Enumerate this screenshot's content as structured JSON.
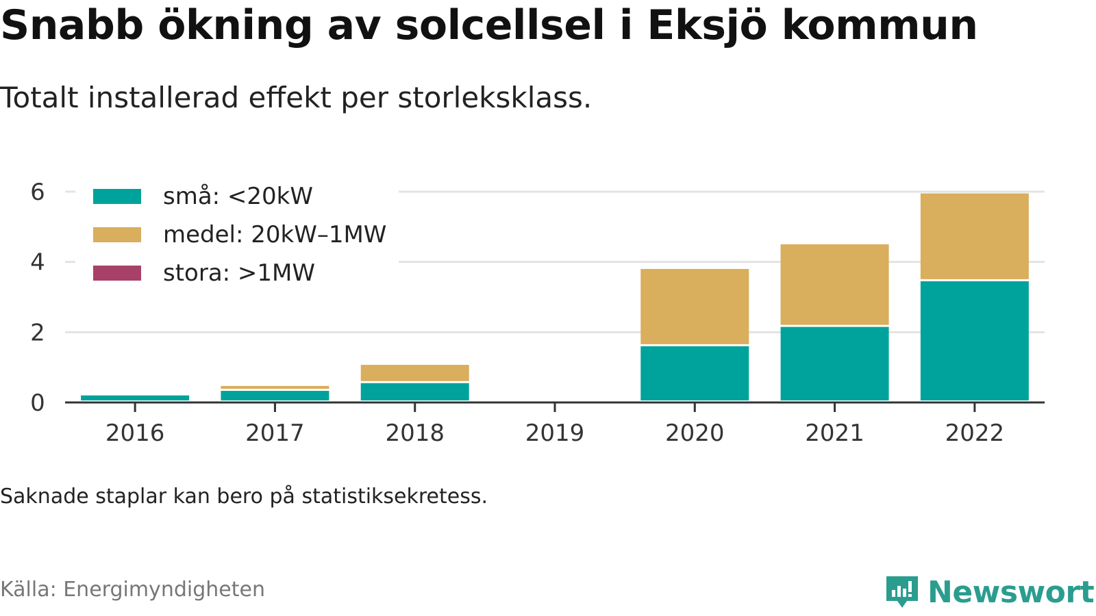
{
  "title": "Snabb ökning av solcellsel i Eksjö kommun",
  "subtitle": "Totalt installerad effekt per storleksklass.",
  "note": "Saknade staplar kan bero på statistiksekretess.",
  "source": "Källa: Energimyndigheten",
  "brand": {
    "name": "Newsworthy",
    "icon": "newsworthy-logo-icon",
    "color": "#2a9d8f"
  },
  "chart_data": {
    "type": "bar",
    "stacked": true,
    "categories": [
      "2016",
      "2017",
      "2018",
      "2019",
      "2020",
      "2021",
      "2022"
    ],
    "series": [
      {
        "name": "små: <20kW",
        "color": "#00a39b",
        "values": [
          0.2,
          0.33,
          0.55,
          0,
          1.6,
          2.15,
          3.45
        ]
      },
      {
        "name": "medel: 20kW–1MW",
        "color": "#d9ae5c",
        "values": [
          0,
          0.14,
          0.52,
          0,
          2.2,
          2.35,
          2.5
        ]
      },
      {
        "name": "stora: >1MW",
        "color": "#a8416a",
        "values": [
          0,
          0,
          0,
          0,
          0,
          0,
          0
        ]
      }
    ],
    "ylim": [
      0,
      6
    ],
    "yticks": [
      0,
      2,
      4,
      6
    ],
    "grid": true,
    "legend_position": "top-left",
    "xlabel": "",
    "ylabel": ""
  }
}
